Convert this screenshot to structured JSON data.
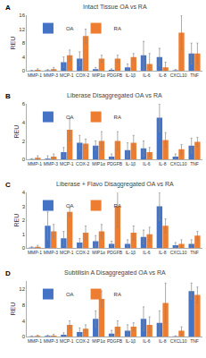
{
  "chart_data": [
    {
      "type": "bar",
      "panel": "A",
      "title": "Intact Tissue OA vs RA",
      "y_label": "REU",
      "categories": [
        "MMP-1",
        "MMP-3",
        "MCP-1",
        "COX-2",
        "MIP1α",
        "PDGFB",
        "IL-1β",
        "IL-6",
        "IL-8",
        "CXCL10",
        "TNF"
      ],
      "series": [
        {
          "name": "OA",
          "color": "#4472c4",
          "values": [
            0.1,
            0.2,
            2.5,
            3.5,
            0.5,
            0.3,
            1,
            4.5,
            4,
            0.2,
            5
          ],
          "error": [
            0.1,
            0.2,
            1.5,
            2,
            0.5,
            0.3,
            1,
            4,
            2.5,
            0.2,
            3
          ]
        },
        {
          "name": "RA",
          "color": "#ed7d31",
          "values": [
            0.3,
            0.5,
            4.5,
            10,
            3.5,
            3.5,
            4,
            2,
            1,
            11,
            5
          ],
          "error": [
            0.3,
            0.5,
            1.5,
            2,
            1,
            1,
            1,
            3,
            1.5,
            5,
            3
          ]
        }
      ],
      "ylim": [
        0,
        16
      ],
      "yticks": [
        0,
        4,
        8,
        12,
        16
      ],
      "grid": false,
      "legend": "upper left"
    },
    {
      "type": "bar",
      "panel": "B",
      "title": "Liberase Disaggregated OA vs RA",
      "y_label": "REU",
      "categories": [
        "MMP-1",
        "MMP-3",
        "MCP-1",
        "COX-2",
        "MIP1α",
        "PDGFB",
        "IL-1β",
        "IL-6",
        "IL-8",
        "CXCL10",
        "TNF"
      ],
      "series": [
        {
          "name": "OA",
          "color": "#4472c4",
          "values": [
            0.05,
            0.1,
            0.8,
            1.8,
            1.5,
            0.3,
            1,
            1.2,
            4.5,
            0.3,
            1.5
          ],
          "error": [
            0.05,
            0.3,
            0.5,
            0.8,
            0.5,
            0.3,
            0.8,
            0.8,
            1.5,
            0.3,
            0.8
          ]
        },
        {
          "name": "RA",
          "color": "#ed7d31",
          "values": [
            0.2,
            0.3,
            3.2,
            1.7,
            2,
            2,
            1.8,
            0.8,
            2.1,
            1.1,
            1.9
          ],
          "error": [
            0.2,
            0.3,
            1.2,
            0.5,
            1,
            1,
            0.8,
            0.5,
            0.8,
            0.5,
            0.5
          ]
        }
      ],
      "ylim": [
        0,
        6
      ],
      "yticks": [
        0,
        2,
        4,
        6
      ],
      "grid": false,
      "legend": "upper left"
    },
    {
      "type": "bar",
      "panel": "C",
      "title": "Liberase + Flavo Disaggregated OA vs RA",
      "y_label": "REU",
      "categories": [
        "MMP-1",
        "MMP-3",
        "MCP-1",
        "COX-2",
        "MIP1α",
        "PDGFB",
        "IL-1β",
        "IL-6",
        "IL-8",
        "CXCL10",
        "TNF"
      ],
      "series": [
        {
          "name": "OA",
          "color": "#4472c4",
          "values": [
            0.05,
            1.6,
            0.7,
            0.4,
            0.5,
            0.3,
            0.3,
            0.8,
            3,
            0.2,
            0.3
          ],
          "error": [
            0.05,
            1,
            0.5,
            0.3,
            0.4,
            0.2,
            0.3,
            0.5,
            1,
            0.2,
            0.3
          ]
        },
        {
          "name": "RA",
          "color": "#ed7d31",
          "values": [
            0.1,
            1.2,
            2.6,
            1.1,
            1.2,
            3,
            1.1,
            1,
            1.6,
            0.3,
            0.9
          ],
          "error": [
            0.1,
            0.5,
            0.3,
            0.5,
            0.5,
            1.5,
            0.5,
            0.5,
            0.5,
            0.3,
            0.3
          ]
        }
      ],
      "ylim": [
        0,
        4
      ],
      "yticks": [
        0,
        1,
        2,
        3,
        4
      ],
      "grid": false,
      "legend": "upper left"
    },
    {
      "type": "bar",
      "panel": "D",
      "title": "Subtilisin A Disaggregated OA vs RA",
      "y_label": "REU",
      "categories": [
        "MMP-1",
        "MMP-3",
        "MCP-1",
        "COX-2",
        "MIP1α",
        "PDGFB",
        "IL-1β",
        "IL-6",
        "IL-8",
        "CXCL10",
        "TNF"
      ],
      "series": [
        {
          "name": "OA",
          "color": "#4472c4",
          "values": [
            0.1,
            0.2,
            0.5,
            1.2,
            4.5,
            0.8,
            1.5,
            4.5,
            3.5,
            0.1,
            11.5
          ],
          "error": [
            0.1,
            0.2,
            0.5,
            1,
            2,
            0.8,
            1.5,
            3,
            3,
            0.1,
            2
          ]
        },
        {
          "name": "RA",
          "color": "#ed7d31",
          "values": [
            0.2,
            0.3,
            3,
            2,
            9.5,
            2.5,
            2.5,
            3,
            8.5,
            1.5,
            10.5
          ],
          "error": [
            0.2,
            0.3,
            1,
            1,
            2,
            1.5,
            1,
            2,
            5,
            1,
            2
          ]
        }
      ],
      "ylim": [
        0,
        14
      ],
      "yticks": [
        0,
        4,
        8,
        12
      ],
      "grid": false,
      "legend": "upper left"
    }
  ]
}
